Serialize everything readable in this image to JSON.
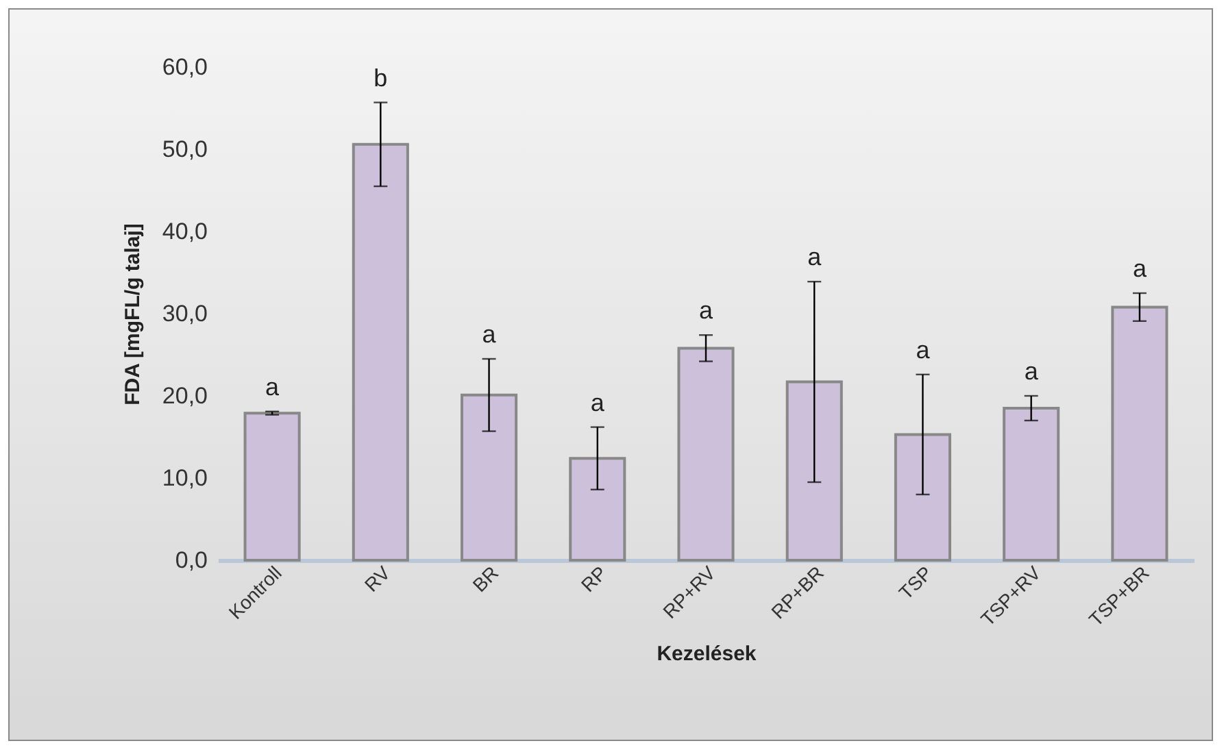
{
  "chart_data": {
    "type": "bar",
    "xlabel": "Kezelések",
    "ylabel": "FDA [mgFL/g talaj]",
    "categories": [
      "Kontroll",
      "RV",
      "BR",
      "RP",
      "RP+RV",
      "RP+BR",
      "TSP",
      "TSP+RV",
      "TSP+BR"
    ],
    "values": [
      17.9,
      50.6,
      20.1,
      12.4,
      25.8,
      21.7,
      15.3,
      18.5,
      30.8
    ],
    "errors": [
      0.2,
      5.1,
      4.4,
      3.8,
      1.6,
      12.2,
      7.3,
      1.5,
      1.7
    ],
    "color": "#ccc0da",
    "ylim": [
      0,
      60
    ],
    "yticks": [
      {
        "value": 0,
        "label": "0,0"
      },
      {
        "value": 10,
        "label": "10,0"
      },
      {
        "value": 20,
        "label": "20,0"
      },
      {
        "value": 30,
        "label": "30,0"
      },
      {
        "value": 40,
        "label": "40,0"
      },
      {
        "value": 50,
        "label": "50,0"
      },
      {
        "value": 60,
        "label": "60,0"
      }
    ],
    "grid": false,
    "annotations": [
      "a",
      "b",
      "a",
      "a",
      "a",
      "a",
      "a",
      "a",
      "a"
    ]
  }
}
